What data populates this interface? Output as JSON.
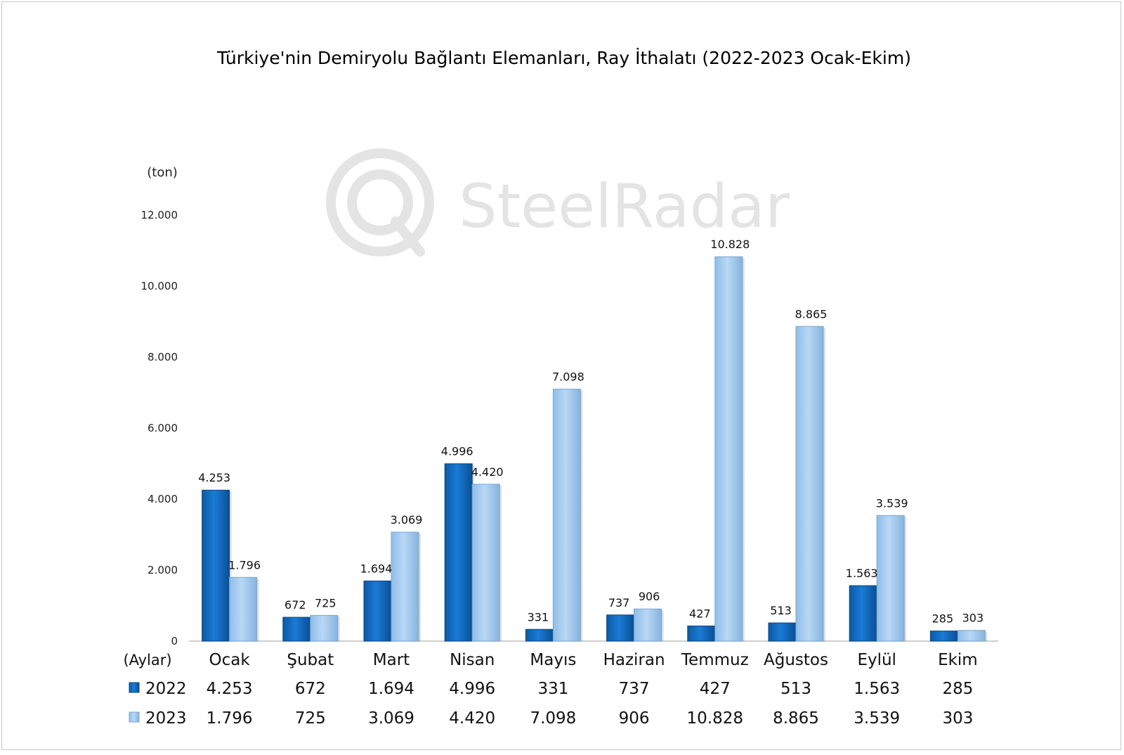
{
  "watermark": "SteelRadar",
  "chart_data": {
    "type": "bar",
    "title": "Türkiye'nin Demiryolu Bağlantı Elemanları, Ray İthalatı (2022-2023 Ocak-Ekim)",
    "ylabel": "(ton)",
    "xlabel": "(Aylar)",
    "ylim": [
      0,
      12000
    ],
    "yticks": [
      0,
      2000,
      4000,
      6000,
      8000,
      10000,
      12000
    ],
    "ytick_labels": [
      "0",
      "2.000",
      "4.000",
      "6.000",
      "8.000",
      "10.000",
      "12.000"
    ],
    "categories": [
      "Ocak",
      "Şubat",
      "Mart",
      "Nisan",
      "Mayıs",
      "Haziran",
      "Temmuz",
      "Ağustos",
      "Eylül",
      "Ekim"
    ],
    "series": [
      {
        "name": "2022",
        "color": "#0f6fc6",
        "values": [
          4253,
          672,
          1694,
          4996,
          331,
          737,
          427,
          513,
          1563,
          285
        ],
        "labels": [
          "4.253",
          "672",
          "1.694",
          "4.996",
          "331",
          "737",
          "427",
          "513",
          "1.563",
          "285"
        ]
      },
      {
        "name": "2023",
        "color": "#a9cdf0",
        "values": [
          1796,
          725,
          3069,
          4420,
          7098,
          906,
          10828,
          8865,
          3539,
          303
        ],
        "labels": [
          "1.796",
          "725",
          "3.069",
          "4.420",
          "7.098",
          "906",
          "10.828",
          "8.865",
          "3.539",
          "303"
        ]
      }
    ],
    "data_table": true,
    "grid": false,
    "legend": "data-table-left"
  }
}
